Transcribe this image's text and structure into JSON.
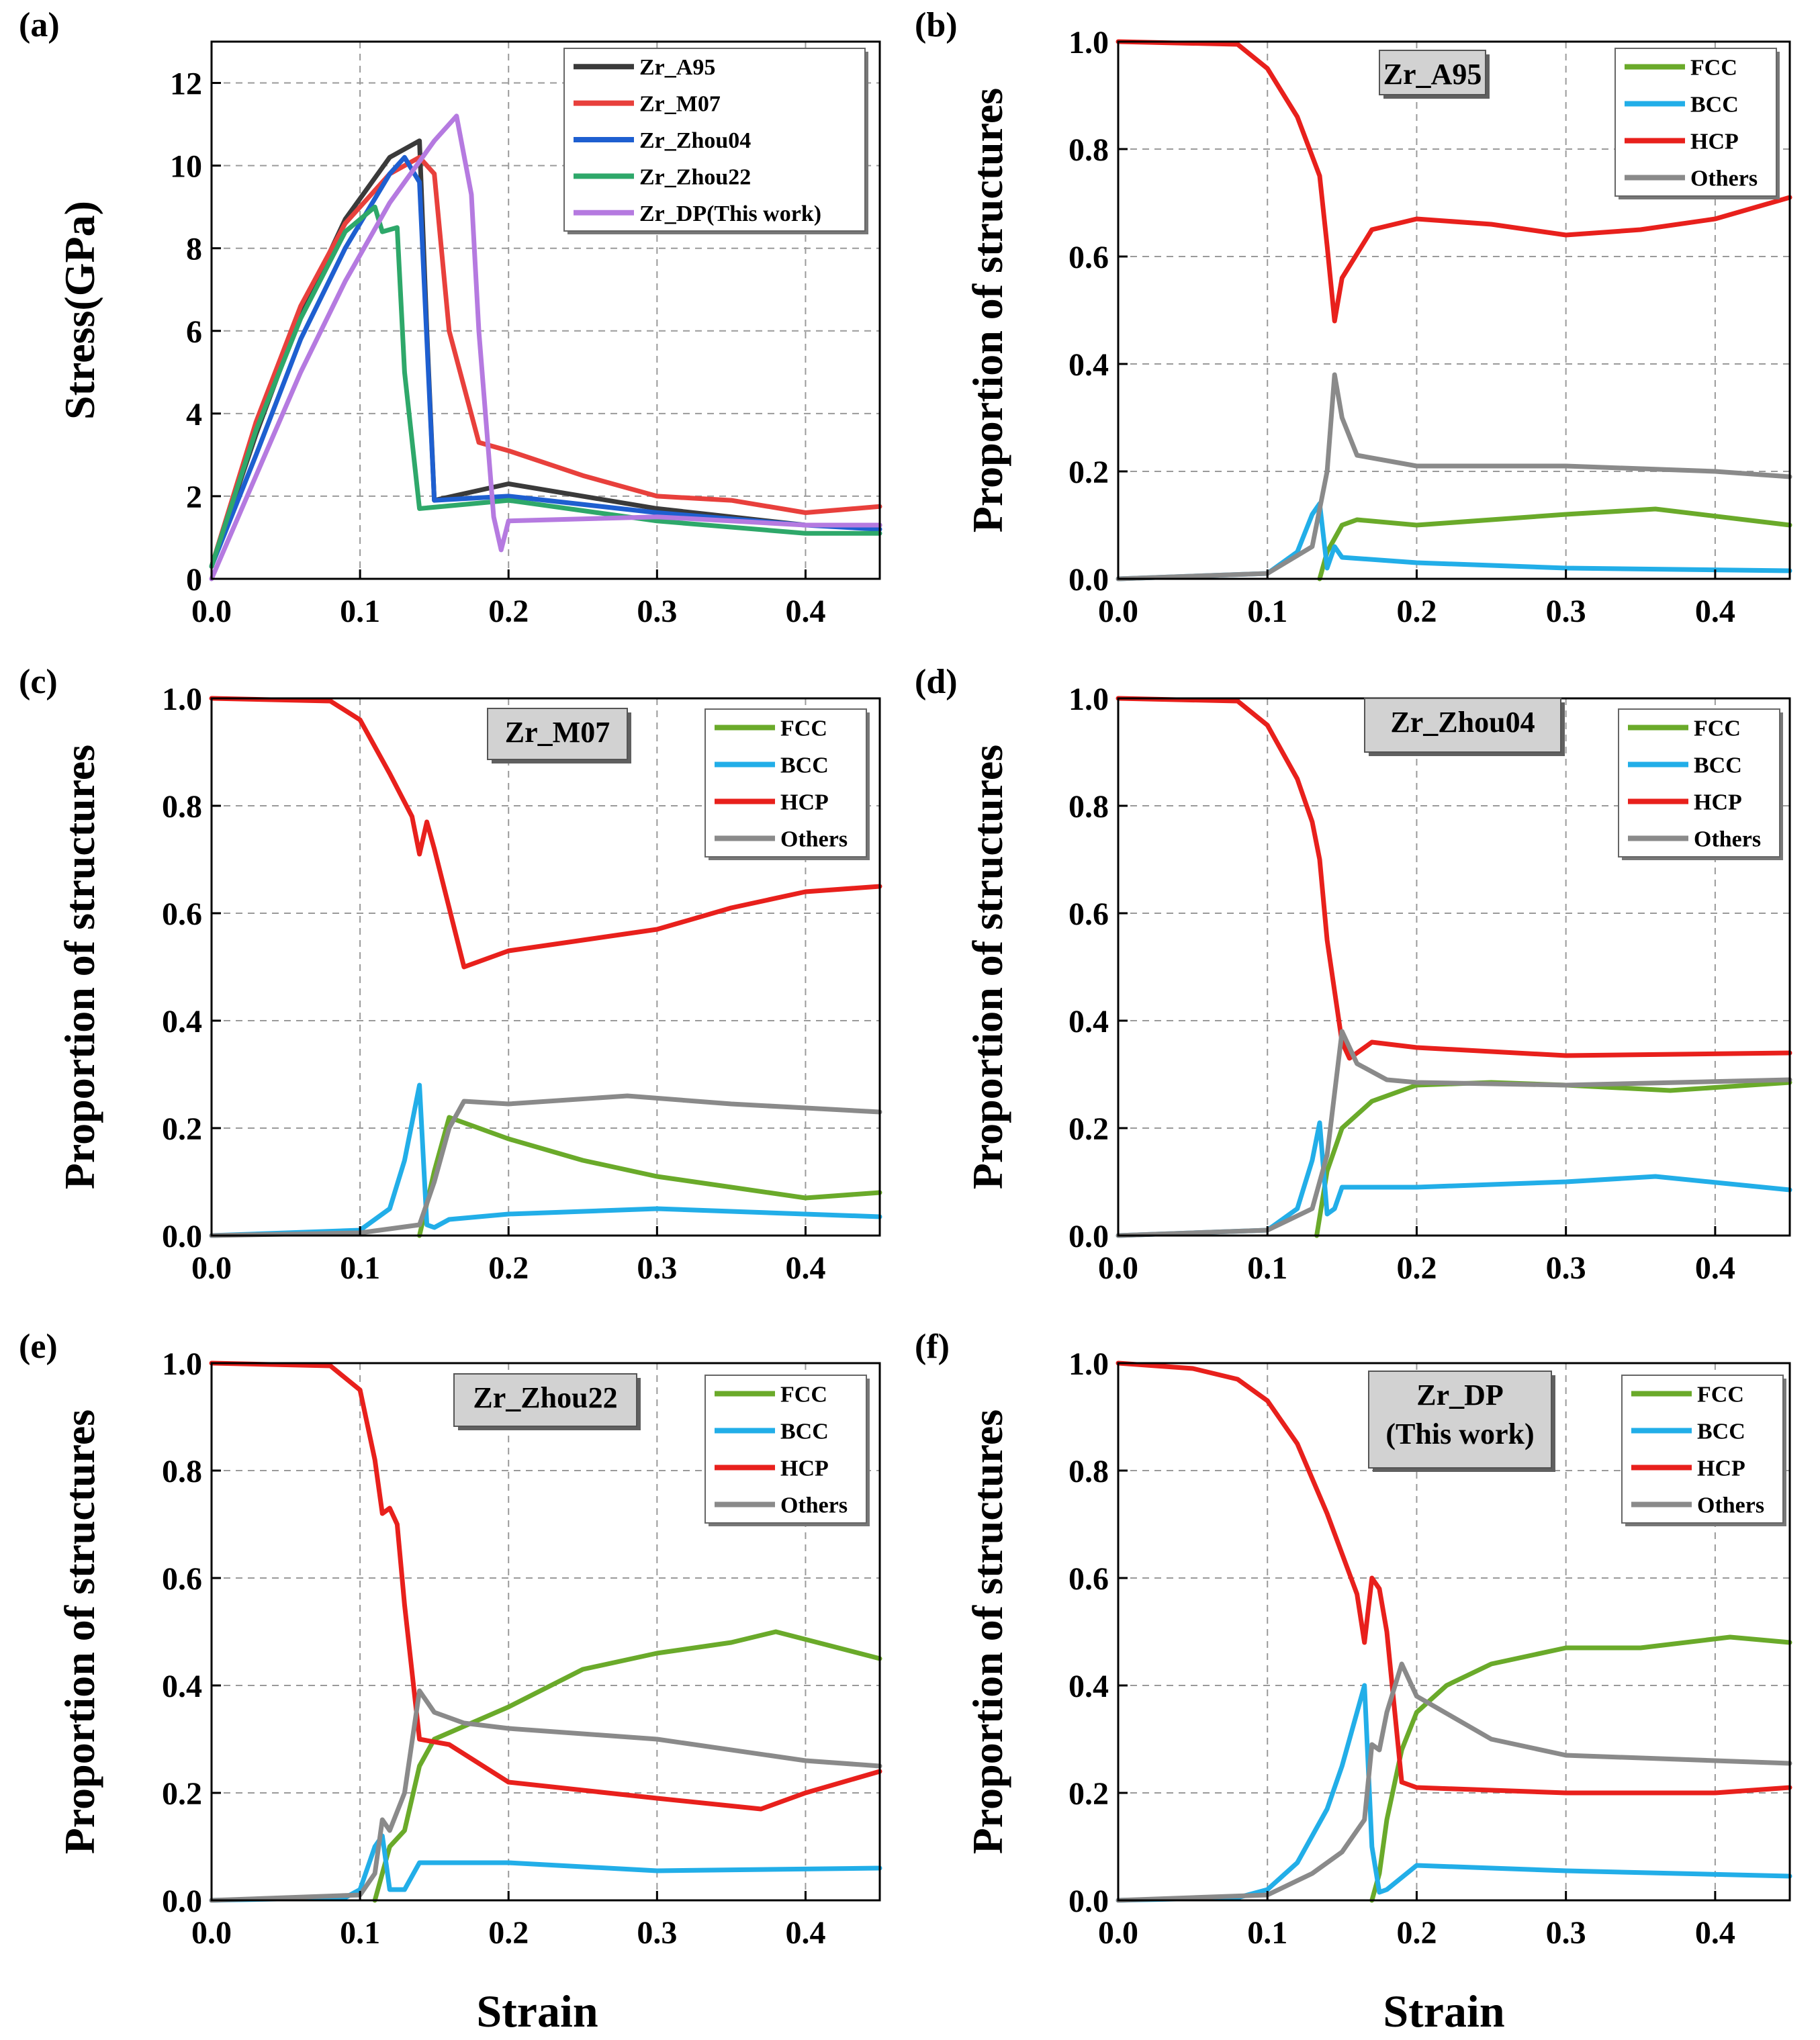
{
  "figure": {
    "x_axis_label": "Strain"
  },
  "chart_data": [
    {
      "id": "a",
      "panel_label": "(a)",
      "type": "line",
      "title": "",
      "xlabel": "",
      "ylabel": "Stress(GPa)",
      "xlim": [
        0,
        0.45
      ],
      "ylim": [
        0,
        13
      ],
      "xticks": [
        0.0,
        0.1,
        0.2,
        0.3,
        0.4
      ],
      "xtick_labels": [
        "0.0",
        "0.1",
        "0.2",
        "0.3",
        "0.4"
      ],
      "yticks": [
        0,
        2,
        4,
        6,
        8,
        10,
        12
      ],
      "ytick_labels": [
        "0",
        "2",
        "4",
        "6",
        "8",
        "10",
        "12"
      ],
      "legend_position": "top-right",
      "series": [
        {
          "name": "Zr_A95",
          "color": "#3a3a3a",
          "x": [
            0,
            0.03,
            0.06,
            0.09,
            0.12,
            0.14,
            0.145,
            0.15,
            0.2,
            0.3,
            0.4,
            0.45
          ],
          "y": [
            0.3,
            3.5,
            6.4,
            8.7,
            10.2,
            10.6,
            6.0,
            1.9,
            2.3,
            1.7,
            1.3,
            1.3
          ]
        },
        {
          "name": "Zr_M07",
          "color": "#e8403c",
          "x": [
            0,
            0.03,
            0.06,
            0.09,
            0.12,
            0.14,
            0.15,
            0.16,
            0.18,
            0.2,
            0.25,
            0.3,
            0.35,
            0.4,
            0.45
          ],
          "y": [
            0.3,
            3.8,
            6.6,
            8.6,
            9.8,
            10.2,
            9.8,
            6.0,
            3.3,
            3.1,
            2.5,
            2.0,
            1.9,
            1.6,
            1.75
          ]
        },
        {
          "name": "Zr_Zhou04",
          "color": "#1e5fd0",
          "x": [
            0,
            0.03,
            0.06,
            0.09,
            0.12,
            0.13,
            0.14,
            0.15,
            0.2,
            0.3,
            0.4,
            0.45
          ],
          "y": [
            0.3,
            3.0,
            5.8,
            8.0,
            9.8,
            10.2,
            9.6,
            1.9,
            2.0,
            1.6,
            1.3,
            1.2
          ]
        },
        {
          "name": "Zr_Zhou22",
          "color": "#2ea86a",
          "x": [
            0,
            0.03,
            0.06,
            0.09,
            0.11,
            0.115,
            0.125,
            0.13,
            0.14,
            0.2,
            0.3,
            0.4,
            0.45
          ],
          "y": [
            0.3,
            3.6,
            6.3,
            8.4,
            9.0,
            8.4,
            8.5,
            5.0,
            1.7,
            1.9,
            1.4,
            1.1,
            1.1
          ]
        },
        {
          "name": "Zr_DP(This work)",
          "color": "#b57ae0",
          "x": [
            0,
            0.03,
            0.06,
            0.09,
            0.12,
            0.15,
            0.165,
            0.175,
            0.18,
            0.19,
            0.195,
            0.2,
            0.3,
            0.4,
            0.45
          ],
          "y": [
            0.0,
            2.5,
            5.0,
            7.2,
            9.1,
            10.6,
            11.2,
            9.3,
            6.0,
            1.5,
            0.7,
            1.4,
            1.5,
            1.3,
            1.3
          ]
        }
      ]
    },
    {
      "id": "b",
      "panel_label": "(b)",
      "type": "line",
      "title": "Zr_A95",
      "xlabel": "",
      "ylabel": "Proportion of structures",
      "xlim": [
        0,
        0.45
      ],
      "ylim": [
        0,
        1.0
      ],
      "xticks": [
        0.0,
        0.1,
        0.2,
        0.3,
        0.4
      ],
      "xtick_labels": [
        "0.0",
        "0.1",
        "0.2",
        "0.3",
        "0.4"
      ],
      "yticks": [
        0.0,
        0.2,
        0.4,
        0.6,
        0.8,
        1.0
      ],
      "ytick_labels": [
        "0.0",
        "0.2",
        "0.4",
        "0.6",
        "0.8",
        "1.0"
      ],
      "legend_position": "top-right",
      "series": [
        {
          "name": "FCC",
          "color": "#6aaa2a",
          "x": [
            0.135,
            0.14,
            0.15,
            0.16,
            0.2,
            0.3,
            0.36,
            0.45
          ],
          "y": [
            0.0,
            0.05,
            0.1,
            0.11,
            0.1,
            0.12,
            0.13,
            0.1
          ]
        },
        {
          "name": "BCC",
          "color": "#22aee8",
          "x": [
            0,
            0.1,
            0.12,
            0.13,
            0.135,
            0.14,
            0.145,
            0.15,
            0.2,
            0.3,
            0.45
          ],
          "y": [
            0.0,
            0.01,
            0.05,
            0.12,
            0.14,
            0.02,
            0.06,
            0.04,
            0.03,
            0.02,
            0.015
          ]
        },
        {
          "name": "HCP",
          "color": "#e8201c",
          "x": [
            0,
            0.08,
            0.1,
            0.12,
            0.135,
            0.14,
            0.145,
            0.15,
            0.17,
            0.2,
            0.25,
            0.3,
            0.35,
            0.4,
            0.45
          ],
          "y": [
            1.0,
            0.995,
            0.95,
            0.86,
            0.75,
            0.62,
            0.48,
            0.56,
            0.65,
            0.67,
            0.66,
            0.64,
            0.65,
            0.67,
            0.71
          ]
        },
        {
          "name": "Others",
          "color": "#8a8a8a",
          "x": [
            0,
            0.1,
            0.13,
            0.14,
            0.145,
            0.15,
            0.16,
            0.2,
            0.3,
            0.4,
            0.45
          ],
          "y": [
            0.0,
            0.01,
            0.06,
            0.2,
            0.38,
            0.3,
            0.23,
            0.21,
            0.21,
            0.2,
            0.19
          ]
        }
      ]
    },
    {
      "id": "c",
      "panel_label": "(c)",
      "type": "line",
      "title": "Zr_M07",
      "xlabel": "",
      "ylabel": "Proportion of structures",
      "xlim": [
        0,
        0.45
      ],
      "ylim": [
        0,
        1.0
      ],
      "xticks": [
        0.0,
        0.1,
        0.2,
        0.3,
        0.4
      ],
      "xtick_labels": [
        "0.0",
        "0.1",
        "0.2",
        "0.3",
        "0.4"
      ],
      "yticks": [
        0.0,
        0.2,
        0.4,
        0.6,
        0.8,
        1.0
      ],
      "ytick_labels": [
        "0.0",
        "0.2",
        "0.4",
        "0.6",
        "0.8",
        "1.0"
      ],
      "legend_position": "top-right",
      "series": [
        {
          "name": "FCC",
          "color": "#6aaa2a",
          "x": [
            0.14,
            0.15,
            0.16,
            0.17,
            0.2,
            0.25,
            0.3,
            0.35,
            0.4,
            0.45
          ],
          "y": [
            0.0,
            0.12,
            0.22,
            0.21,
            0.18,
            0.14,
            0.11,
            0.09,
            0.07,
            0.08
          ]
        },
        {
          "name": "BCC",
          "color": "#22aee8",
          "x": [
            0,
            0.1,
            0.12,
            0.13,
            0.14,
            0.145,
            0.15,
            0.16,
            0.2,
            0.3,
            0.45
          ],
          "y": [
            0.0,
            0.01,
            0.05,
            0.14,
            0.28,
            0.02,
            0.015,
            0.03,
            0.04,
            0.05,
            0.035
          ]
        },
        {
          "name": "HCP",
          "color": "#e8201c",
          "x": [
            0,
            0.08,
            0.1,
            0.12,
            0.135,
            0.14,
            0.145,
            0.15,
            0.17,
            0.2,
            0.25,
            0.3,
            0.35,
            0.4,
            0.45
          ],
          "y": [
            1.0,
            0.995,
            0.96,
            0.86,
            0.78,
            0.71,
            0.77,
            0.72,
            0.5,
            0.53,
            0.55,
            0.57,
            0.61,
            0.64,
            0.65
          ]
        },
        {
          "name": "Others",
          "color": "#8a8a8a",
          "x": [
            0,
            0.1,
            0.14,
            0.15,
            0.16,
            0.17,
            0.2,
            0.28,
            0.35,
            0.45
          ],
          "y": [
            0.0,
            0.005,
            0.02,
            0.1,
            0.2,
            0.25,
            0.245,
            0.26,
            0.245,
            0.23
          ]
        }
      ]
    },
    {
      "id": "d",
      "panel_label": "(d)",
      "type": "line",
      "title": "Zr_Zhou04",
      "xlabel": "",
      "ylabel": "Proportion of structures",
      "xlim": [
        0,
        0.45
      ],
      "ylim": [
        0,
        1.0
      ],
      "xticks": [
        0.0,
        0.1,
        0.2,
        0.3,
        0.4
      ],
      "xtick_labels": [
        "0.0",
        "0.1",
        "0.2",
        "0.3",
        "0.4"
      ],
      "yticks": [
        0.0,
        0.2,
        0.4,
        0.6,
        0.8,
        1.0
      ],
      "ytick_labels": [
        "0.0",
        "0.2",
        "0.4",
        "0.6",
        "0.8",
        "1.0"
      ],
      "legend_position": "top-right",
      "series": [
        {
          "name": "FCC",
          "color": "#6aaa2a",
          "x": [
            0.133,
            0.14,
            0.15,
            0.17,
            0.2,
            0.25,
            0.3,
            0.37,
            0.45
          ],
          "y": [
            0.0,
            0.12,
            0.2,
            0.25,
            0.28,
            0.285,
            0.28,
            0.27,
            0.285
          ]
        },
        {
          "name": "BCC",
          "color": "#22aee8",
          "x": [
            0,
            0.1,
            0.12,
            0.13,
            0.135,
            0.14,
            0.145,
            0.15,
            0.2,
            0.3,
            0.36,
            0.45
          ],
          "y": [
            0.0,
            0.01,
            0.05,
            0.14,
            0.21,
            0.04,
            0.05,
            0.09,
            0.09,
            0.1,
            0.11,
            0.085
          ]
        },
        {
          "name": "HCP",
          "color": "#e8201c",
          "x": [
            0,
            0.08,
            0.1,
            0.12,
            0.13,
            0.135,
            0.14,
            0.15,
            0.155,
            0.17,
            0.2,
            0.3,
            0.45
          ],
          "y": [
            1.0,
            0.995,
            0.95,
            0.85,
            0.77,
            0.7,
            0.55,
            0.36,
            0.33,
            0.36,
            0.35,
            0.335,
            0.34
          ]
        },
        {
          "name": "Others",
          "color": "#8a8a8a",
          "x": [
            0,
            0.1,
            0.13,
            0.14,
            0.15,
            0.16,
            0.18,
            0.2,
            0.3,
            0.45
          ],
          "y": [
            0.0,
            0.01,
            0.05,
            0.15,
            0.38,
            0.32,
            0.29,
            0.285,
            0.28,
            0.29
          ]
        }
      ]
    },
    {
      "id": "e",
      "panel_label": "(e)",
      "type": "line",
      "title": "Zr_Zhou22",
      "xlabel": "Strain",
      "ylabel": "Proportion of structures",
      "xlim": [
        0,
        0.45
      ],
      "ylim": [
        0,
        1.0
      ],
      "xticks": [
        0.0,
        0.1,
        0.2,
        0.3,
        0.4
      ],
      "xtick_labels": [
        "0.0",
        "0.1",
        "0.2",
        "0.3",
        "0.4"
      ],
      "yticks": [
        0.0,
        0.2,
        0.4,
        0.6,
        0.8,
        1.0
      ],
      "ytick_labels": [
        "0.0",
        "0.2",
        "0.4",
        "0.6",
        "0.8",
        "1.0"
      ],
      "legend_position": "top-right",
      "series": [
        {
          "name": "FCC",
          "color": "#6aaa2a",
          "x": [
            0.11,
            0.12,
            0.13,
            0.14,
            0.15,
            0.2,
            0.25,
            0.3,
            0.35,
            0.38,
            0.45
          ],
          "y": [
            0.0,
            0.1,
            0.13,
            0.25,
            0.3,
            0.36,
            0.43,
            0.46,
            0.48,
            0.5,
            0.45
          ]
        },
        {
          "name": "BCC",
          "color": "#22aee8",
          "x": [
            0,
            0.09,
            0.1,
            0.11,
            0.115,
            0.12,
            0.13,
            0.14,
            0.2,
            0.3,
            0.45
          ],
          "y": [
            0.0,
            0.005,
            0.02,
            0.1,
            0.12,
            0.02,
            0.02,
            0.07,
            0.07,
            0.055,
            0.06
          ]
        },
        {
          "name": "HCP",
          "color": "#e8201c",
          "x": [
            0,
            0.08,
            0.1,
            0.11,
            0.115,
            0.12,
            0.125,
            0.13,
            0.14,
            0.16,
            0.2,
            0.3,
            0.37,
            0.4,
            0.45
          ],
          "y": [
            1.0,
            0.995,
            0.95,
            0.82,
            0.72,
            0.73,
            0.7,
            0.55,
            0.3,
            0.29,
            0.22,
            0.19,
            0.17,
            0.2,
            0.24
          ]
        },
        {
          "name": "Others",
          "color": "#8a8a8a",
          "x": [
            0,
            0.1,
            0.11,
            0.115,
            0.12,
            0.13,
            0.14,
            0.15,
            0.17,
            0.2,
            0.3,
            0.4,
            0.45
          ],
          "y": [
            0.0,
            0.01,
            0.05,
            0.15,
            0.13,
            0.2,
            0.39,
            0.35,
            0.33,
            0.32,
            0.3,
            0.26,
            0.25
          ]
        }
      ]
    },
    {
      "id": "f",
      "panel_label": "(f)",
      "type": "line",
      "title": "Zr_DP\n(This work)",
      "title_lines": [
        "Zr_DP",
        "(This work)"
      ],
      "xlabel": "Strain",
      "ylabel": "Proportion of structures",
      "xlim": [
        0,
        0.45
      ],
      "ylim": [
        0,
        1.0
      ],
      "xticks": [
        0.0,
        0.1,
        0.2,
        0.3,
        0.4
      ],
      "xtick_labels": [
        "0.0",
        "0.1",
        "0.2",
        "0.3",
        "0.4"
      ],
      "yticks": [
        0.0,
        0.2,
        0.4,
        0.6,
        0.8,
        1.0
      ],
      "ytick_labels": [
        "0.0",
        "0.2",
        "0.4",
        "0.6",
        "0.8",
        "1.0"
      ],
      "legend_position": "top-right",
      "series": [
        {
          "name": "FCC",
          "color": "#6aaa2a",
          "x": [
            0.17,
            0.175,
            0.18,
            0.19,
            0.2,
            0.22,
            0.25,
            0.3,
            0.35,
            0.41,
            0.45
          ],
          "y": [
            0.0,
            0.05,
            0.15,
            0.28,
            0.35,
            0.4,
            0.44,
            0.47,
            0.47,
            0.49,
            0.48
          ]
        },
        {
          "name": "BCC",
          "color": "#22aee8",
          "x": [
            0,
            0.08,
            0.1,
            0.12,
            0.14,
            0.15,
            0.16,
            0.165,
            0.17,
            0.175,
            0.18,
            0.2,
            0.3,
            0.45
          ],
          "y": [
            0.0,
            0.005,
            0.02,
            0.07,
            0.17,
            0.25,
            0.35,
            0.4,
            0.1,
            0.015,
            0.02,
            0.065,
            0.055,
            0.045
          ]
        },
        {
          "name": "HCP",
          "color": "#e8201c",
          "x": [
            0,
            0.05,
            0.08,
            0.1,
            0.12,
            0.14,
            0.16,
            0.165,
            0.17,
            0.175,
            0.18,
            0.19,
            0.2,
            0.3,
            0.4,
            0.45
          ],
          "y": [
            1.0,
            0.99,
            0.97,
            0.93,
            0.85,
            0.72,
            0.57,
            0.48,
            0.6,
            0.58,
            0.5,
            0.22,
            0.21,
            0.2,
            0.2,
            0.21
          ]
        },
        {
          "name": "Others",
          "color": "#8a8a8a",
          "x": [
            0,
            0.1,
            0.13,
            0.15,
            0.165,
            0.17,
            0.175,
            0.18,
            0.19,
            0.2,
            0.25,
            0.3,
            0.4,
            0.45
          ],
          "y": [
            0.0,
            0.01,
            0.05,
            0.09,
            0.15,
            0.29,
            0.28,
            0.35,
            0.44,
            0.38,
            0.3,
            0.27,
            0.26,
            0.255
          ]
        }
      ]
    }
  ]
}
